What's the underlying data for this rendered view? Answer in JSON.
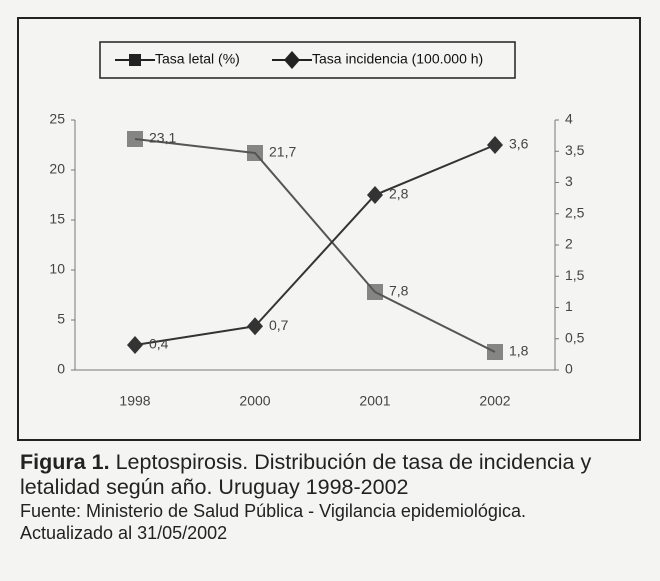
{
  "chart_data": {
    "type": "line",
    "categories": [
      "1998",
      "2000",
      "2001",
      "2002"
    ],
    "series": [
      {
        "name": "Tasa letal (%)",
        "color": "#555555",
        "marker": "square",
        "values": [
          23.1,
          21.7,
          7.8,
          1.8
        ],
        "value_labels": [
          "23,1",
          "21,7",
          "7,8",
          "1,8"
        ]
      },
      {
        "name": "Tasa incidencia (100.000 h)",
        "color": "#333333",
        "marker": "diamond",
        "axis": "y2",
        "values": [
          0.4,
          0.7,
          2.8,
          3.6
        ],
        "value_labels": [
          "0,4",
          "0,7",
          "2,8",
          "3,6"
        ]
      }
    ],
    "ylim": [
      0,
      25
    ],
    "yticks": [
      0,
      5,
      10,
      15,
      20,
      25
    ],
    "y2lim": [
      0,
      4
    ],
    "y2ticks": [
      0,
      {
        "value": 0.5,
        "label": "0,5"
      },
      1,
      {
        "value": 1.5,
        "label": "1,5"
      },
      2,
      {
        "value": 2.5,
        "label": "2,5"
      },
      3,
      {
        "value": 3.5,
        "label": "3,5"
      },
      4
    ]
  },
  "caption": {
    "label": "Figura 1.",
    "text": "Leptospirosis. Distribución de tasa de incidencia y letalidad según año. Uruguay 1998-2002",
    "source": "Fuente: Ministerio de Salud Pública - Vigilancia epidemiológica.",
    "updated": "Actualizado al 31/05/2002"
  }
}
